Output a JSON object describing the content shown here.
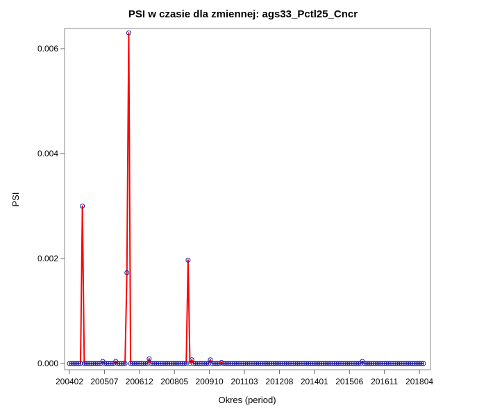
{
  "chart_data": {
    "type": "line",
    "title": "PSI w czasie dla zmiennej: ags33_Pctl25_Cncr",
    "xlabel": "Okres (period)",
    "ylabel": "PSI",
    "ylim": [
      0,
      0.0063
    ],
    "yticks": [
      "0.000",
      "0.002",
      "0.004",
      "0.006"
    ],
    "ytick_values": [
      0,
      0.002,
      0.004,
      0.006
    ],
    "xticks": [
      "200402",
      "200507",
      "200612",
      "200805",
      "200910",
      "201103",
      "201208",
      "201401",
      "201506",
      "201611",
      "201804"
    ],
    "x_start": "200402",
    "x_end": "201806",
    "grid": false,
    "series": [
      {
        "line_color": "#ff0000",
        "marker_color": "#1a1aa6",
        "values": [
          0,
          0,
          0,
          0,
          0,
          0,
          0,
          0.003,
          0,
          0,
          0,
          0,
          0,
          0,
          0,
          0,
          0,
          0,
          4e-05,
          0,
          0,
          0,
          0,
          0,
          0,
          4e-05,
          0,
          0,
          0,
          0,
          0,
          0.00173,
          0.0063,
          0,
          0,
          0,
          0,
          0,
          0,
          0,
          0,
          0,
          0,
          9e-05,
          0,
          0,
          0,
          0,
          0,
          0,
          0,
          0,
          0,
          0,
          0,
          0,
          0,
          0,
          0,
          0,
          0,
          0,
          0,
          0,
          0.00197,
          0,
          7e-05,
          0,
          0,
          0,
          0,
          0,
          0,
          0,
          0,
          0,
          7e-05,
          0,
          0,
          0,
          0,
          0,
          2e-05,
          0,
          0,
          0,
          0,
          0,
          0,
          0,
          0,
          0,
          0,
          0,
          0,
          0,
          0,
          0,
          0,
          0,
          0,
          0,
          0,
          0,
          0,
          0,
          0,
          0,
          0,
          0,
          0,
          0,
          0,
          0,
          0,
          0,
          0,
          0,
          0,
          0,
          0,
          0,
          0,
          0,
          0,
          0,
          0,
          0,
          0,
          0,
          0,
          0,
          0,
          0,
          0,
          0,
          0,
          0,
          0,
          0,
          0,
          0,
          0,
          0,
          0,
          0,
          0,
          0,
          0,
          0,
          0,
          0,
          0,
          0,
          0,
          0,
          0,
          0,
          4e-05,
          0,
          0,
          0,
          0,
          0,
          0,
          0,
          0,
          0,
          0,
          0,
          0,
          0,
          0,
          0,
          0,
          0,
          0,
          0,
          0,
          0,
          0,
          0,
          0,
          0,
          0,
          0,
          0,
          0,
          0,
          0,
          0,
          0
        ]
      }
    ]
  }
}
